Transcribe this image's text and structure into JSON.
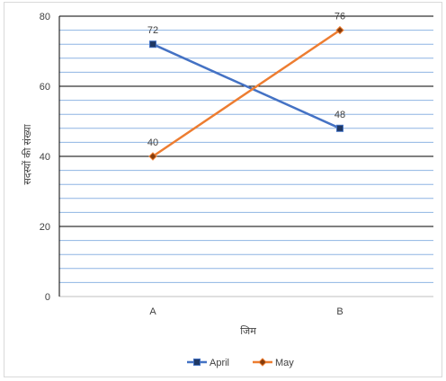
{
  "chart_data": {
    "type": "line",
    "title": "",
    "xlabel": "जिम",
    "ylabel": "सदस्यों की संख्या",
    "categories": [
      "A",
      "B"
    ],
    "ylim": [
      0,
      80
    ],
    "major_ticks": [
      0,
      20,
      40,
      60,
      80
    ],
    "minor_step": 4,
    "grid": true,
    "legend_position": "bottom",
    "series": [
      {
        "name": "April",
        "values": [
          72,
          48
        ],
        "color": "#4472c4",
        "marker": "square"
      },
      {
        "name": "May",
        "values": [
          40,
          76
        ],
        "color": "#ed7d31",
        "marker": "diamond"
      }
    ]
  }
}
